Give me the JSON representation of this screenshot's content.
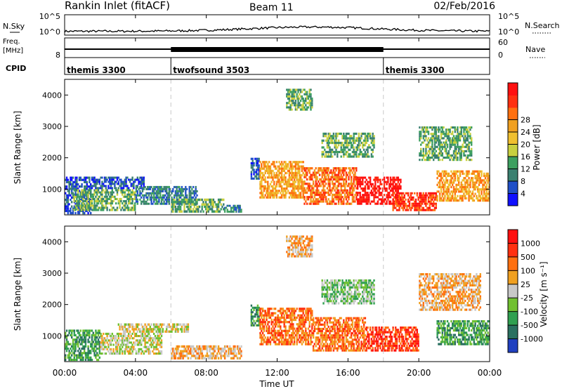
{
  "header": {
    "station": "Rankin Inlet (fitACF)",
    "beam": "Beam 11",
    "date": "02/Feb/2016"
  },
  "ticks": {
    "nsky_top": "10^5",
    "nsky_bottom": "10^0",
    "freq_top": "",
    "freq_bottom": "8",
    "nave_top": "60",
    "nave_bottom": "0"
  },
  "labels": {
    "nsky": "N.Sky",
    "nsearch": "N.Search",
    "freq_line1": "Freq.",
    "freq_line2": "[MHz]",
    "nave": "Nave",
    "cpid": "CPID",
    "slant_range": "Slant Range [km]",
    "time_axis": "Time UT",
    "power_bar": "Power [dB]",
    "velocity_bar": "Velocity [m s⁻¹]"
  },
  "chart_data": {
    "type": "heatmap",
    "x": {
      "label": "Time UT",
      "range_hours": [
        0,
        24
      ],
      "ticks": [
        "00:00",
        "04:00",
        "08:00",
        "12:00",
        "16:00",
        "20:00",
        "00:00"
      ]
    },
    "cpid_segments": [
      {
        "label": "themis 3300",
        "start_hour": 0,
        "end_hour": 6
      },
      {
        "label": "twofsound 3503",
        "start_hour": 6,
        "end_hour": 18
      },
      {
        "label": "themis 3300",
        "start_hour": 18,
        "end_hour": 24
      }
    ],
    "mode_boundaries_hours": [
      6,
      18
    ],
    "panels": [
      {
        "name": "Power",
        "ylabel": "Slant Range [km]",
        "ylim": [
          180,
          4500
        ],
        "yticks": [
          1000,
          2000,
          3000,
          4000
        ],
        "colorbar": {
          "label": "Power [dB]",
          "tick_labels": [
            "4",
            "8",
            "12",
            "16",
            "20",
            "24",
            "28"
          ],
          "colors": [
            "#1010ff",
            "#2050c8",
            "#3a8070",
            "#3da060",
            "#c8d040",
            "#f0c030",
            "#f0a020",
            "#ff7010",
            "#ff3010",
            "#ff1010"
          ]
        },
        "bands": [
          {
            "t0": 0.0,
            "t1": 1.5,
            "r0": 200,
            "r1": 1400,
            "level": 1
          },
          {
            "t0": 0.5,
            "t1": 4.0,
            "r0": 300,
            "r1": 1000,
            "level": 3
          },
          {
            "t0": 1.5,
            "t1": 4.5,
            "r0": 1000,
            "r1": 1400,
            "level": 1
          },
          {
            "t0": 4.0,
            "t1": 7.5,
            "r0": 500,
            "r1": 1100,
            "level": 2
          },
          {
            "t0": 6.0,
            "t1": 9.0,
            "r0": 250,
            "r1": 700,
            "level": 3
          },
          {
            "t0": 9.0,
            "t1": 10.0,
            "r0": 250,
            "r1": 500,
            "level": 2
          },
          {
            "t0": 10.5,
            "t1": 11.0,
            "r0": 1300,
            "r1": 2000,
            "level": 1
          },
          {
            "t0": 11.0,
            "t1": 13.5,
            "r0": 700,
            "r1": 1900,
            "level": 6
          },
          {
            "t0": 13.5,
            "t1": 16.5,
            "r0": 500,
            "r1": 1700,
            "level": 7
          },
          {
            "t0": 14.5,
            "t1": 17.5,
            "r0": 2000,
            "r1": 2800,
            "level": 3
          },
          {
            "t0": 16.5,
            "t1": 19.0,
            "r0": 500,
            "r1": 1400,
            "level": 9
          },
          {
            "t0": 18.5,
            "t1": 21.0,
            "r0": 300,
            "r1": 900,
            "level": 8
          },
          {
            "t0": 20.0,
            "t1": 23.0,
            "r0": 1900,
            "r1": 3000,
            "level": 3
          },
          {
            "t0": 21.0,
            "t1": 24.0,
            "r0": 600,
            "r1": 1600,
            "level": 6
          },
          {
            "t0": 12.5,
            "t1": 14.0,
            "r0": 3500,
            "r1": 4200,
            "level": 3
          }
        ]
      },
      {
        "name": "Velocity",
        "ylabel": "Slant Range [km]",
        "ylim": [
          180,
          4500
        ],
        "yticks": [
          1000,
          2000,
          3000,
          4000
        ],
        "colorbar": {
          "label": "Velocity [m s⁻¹]",
          "tick_labels": [
            "1000",
            "500",
            "100",
            "25",
            "-25",
            "-100",
            "-500",
            "-1000"
          ],
          "colors": [
            "#2040c0",
            "#2a7060",
            "#30a050",
            "#70c030",
            "#c8c8c8",
            "#f0a020",
            "#ff7010",
            "#ff3010",
            "#ff1010"
          ]
        },
        "bands": [
          {
            "t0": 0.0,
            "t1": 2.0,
            "r0": 200,
            "r1": 1200,
            "level": 2
          },
          {
            "t0": 2.0,
            "t1": 5.5,
            "r0": 400,
            "r1": 1100,
            "level": 4
          },
          {
            "t0": 3.0,
            "t1": 7.0,
            "r0": 1100,
            "r1": 1400,
            "level": 4
          },
          {
            "t0": 6.0,
            "t1": 10.0,
            "r0": 250,
            "r1": 700,
            "level": 5
          },
          {
            "t0": 10.5,
            "t1": 11.0,
            "r0": 1300,
            "r1": 2000,
            "level": 2
          },
          {
            "t0": 11.0,
            "t1": 14.0,
            "r0": 700,
            "r1": 1900,
            "level": 6
          },
          {
            "t0": 14.0,
            "t1": 17.0,
            "r0": 500,
            "r1": 1600,
            "level": 6
          },
          {
            "t0": 14.5,
            "t1": 17.5,
            "r0": 2000,
            "r1": 2800,
            "level": 3
          },
          {
            "t0": 17.0,
            "t1": 20.0,
            "r0": 500,
            "r1": 1300,
            "level": 7
          },
          {
            "t0": 20.0,
            "t1": 23.5,
            "r0": 1800,
            "r1": 3000,
            "level": 5
          },
          {
            "t0": 21.0,
            "t1": 24.0,
            "r0": 700,
            "r1": 1500,
            "level": 2
          },
          {
            "t0": 12.5,
            "t1": 14.0,
            "r0": 3500,
            "r1": 4200,
            "level": 5
          }
        ]
      }
    ]
  }
}
